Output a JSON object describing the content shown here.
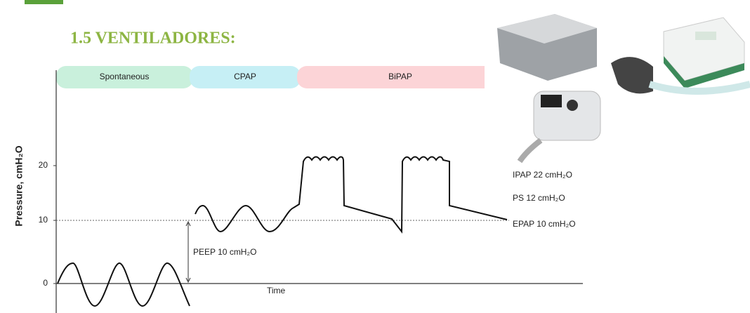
{
  "header": {
    "title": "1.5 VENTILADORES:"
  },
  "diagram": {
    "phases": [
      "Spontaneous",
      "CPAP",
      "BiPAP"
    ],
    "y_axis_label": "Pressure, cmH₂O",
    "y_ticks": [
      "0",
      "10",
      "20"
    ],
    "x_axis_label": "Time",
    "annotations": {
      "peep": "PEEP 10 cmH₂O",
      "ipap": "IPAP 22 cmH₂O",
      "ps": "PS 12 cmH₂O",
      "epap": "EPAP 10 cmH₂O"
    }
  }
}
